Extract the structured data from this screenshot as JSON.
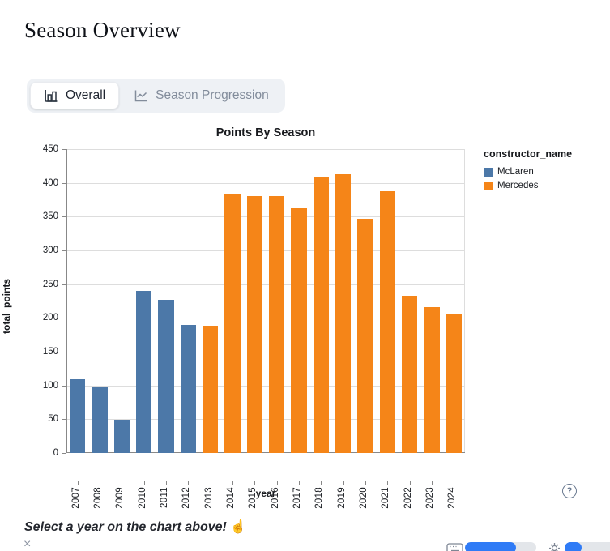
{
  "page": {
    "title": "Season Overview"
  },
  "tabs": [
    {
      "id": "overall",
      "label": "Overall",
      "icon": "bar-chart-icon",
      "active": true
    },
    {
      "id": "season-progression",
      "label": "Season Progression",
      "icon": "line-chart-icon",
      "active": false
    }
  ],
  "chart_data": {
    "type": "bar",
    "title": "Points By Season",
    "xlabel": "year",
    "ylabel": "total_points",
    "ylim": [
      0,
      450
    ],
    "ytick_step": 50,
    "grid": true,
    "legend_position": "right",
    "categories": [
      "2007",
      "2008",
      "2009",
      "2010",
      "2011",
      "2012",
      "2013",
      "2014",
      "2015",
      "2016",
      "2017",
      "2018",
      "2019",
      "2020",
      "2021",
      "2022",
      "2023",
      "2024"
    ],
    "values": [
      109,
      98,
      49,
      240,
      227,
      190,
      189,
      384,
      381,
      380,
      363,
      408,
      413,
      347,
      387.5,
      233,
      216,
      206
    ],
    "series_by_point": [
      "McLaren",
      "McLaren",
      "McLaren",
      "McLaren",
      "McLaren",
      "McLaren",
      "Mercedes",
      "Mercedes",
      "Mercedes",
      "Mercedes",
      "Mercedes",
      "Mercedes",
      "Mercedes",
      "Mercedes",
      "Mercedes",
      "Mercedes",
      "Mercedes",
      "Mercedes"
    ],
    "legend": {
      "title": "constructor_name",
      "entries": [
        {
          "label": "McLaren",
          "color": "#4c78a8"
        },
        {
          "label": "Mercedes",
          "color": "#f58518"
        }
      ]
    }
  },
  "help_icon": {
    "glyph": "?"
  },
  "prompt": {
    "text": "Select a year on the chart above!",
    "emoji": "☝"
  },
  "footer": {
    "close_glyph": "×"
  },
  "colors": {
    "mclaren_blue": "#4c78a8",
    "mercedes_orange": "#f58518",
    "accent_blue": "#2f7bf6"
  }
}
